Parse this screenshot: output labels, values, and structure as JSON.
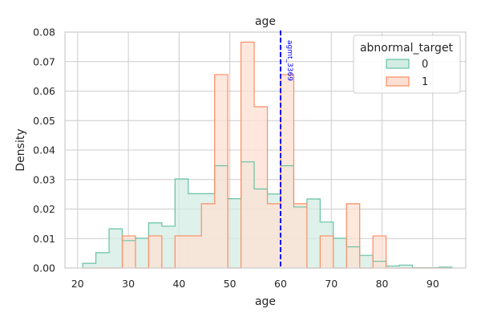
{
  "chart_data": {
    "type": "histogram",
    "title": "age",
    "xlabel": "age",
    "ylabel": "Density",
    "xlim": [
      17.5,
      96.5
    ],
    "ylim": [
      0,
      0.08
    ],
    "xticks": [
      20,
      30,
      40,
      50,
      60,
      70,
      80,
      90
    ],
    "yticks": [
      0.0,
      0.01,
      0.02,
      0.03,
      0.04,
      0.05,
      0.06,
      0.07,
      0.08
    ],
    "ytick_decimals": 2,
    "grid": true,
    "legend": {
      "title": "abnormal_target",
      "placement": "top-right"
    },
    "bin_edges": [
      21,
      23.6,
      26.2,
      28.8,
      31.4,
      34.0,
      36.6,
      39.2,
      41.8,
      44.4,
      47.0,
      49.6,
      52.2,
      54.8,
      57.4,
      60.0,
      62.6,
      65.2,
      67.8,
      70.4,
      73.0,
      75.6,
      78.2,
      80.8,
      83.4,
      86.0,
      88.6,
      91.2,
      93.8
    ],
    "series": [
      {
        "name": "0",
        "color": "#66c2a5",
        "fill": "#d3ece3",
        "values": [
          0.0016,
          0.0052,
          0.0133,
          0.0093,
          0.0101,
          0.0153,
          0.0142,
          0.0302,
          0.0252,
          0.0252,
          0.0347,
          0.0235,
          0.036,
          0.0268,
          0.0251,
          0.0347,
          0.0207,
          0.0234,
          0.0156,
          0.0101,
          0.0072,
          0.0043,
          0.0023,
          0.0007,
          0.001,
          0.0001,
          0.0001,
          0.0003
        ]
      },
      {
        "name": "1",
        "color": "#fc8d62",
        "fill": "#fde0d3",
        "values": [
          0,
          0,
          0,
          0.0109,
          0,
          0.0109,
          0,
          0.0109,
          0.0109,
          0.0218,
          0.0656,
          0,
          0.0766,
          0.0547,
          0.0218,
          0.0656,
          0.0218,
          0,
          0.0109,
          0,
          0.0218,
          0,
          0.0109,
          0,
          0,
          0,
          0,
          0
        ]
      }
    ],
    "reference_line": {
      "x": 60,
      "label": "agmt_3369",
      "color": "#0000ff",
      "style": "dashed"
    }
  }
}
